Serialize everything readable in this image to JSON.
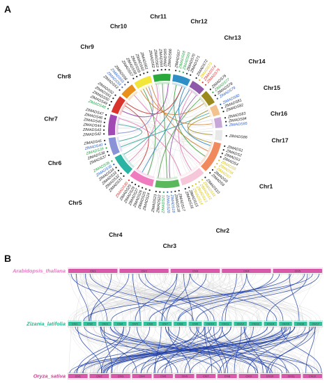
{
  "panel_a": {
    "label": "A",
    "chromosomes": [
      {
        "name": "Chr1",
        "color": "#f08a5d",
        "length": 9
      },
      {
        "name": "Chr2",
        "color": "#f6c7d8",
        "length": 7
      },
      {
        "name": "Chr3",
        "color": "#5cb85c",
        "length": 7
      },
      {
        "name": "Chr4",
        "color": "#f07cc0",
        "length": 7
      },
      {
        "name": "Chr5",
        "color": "#2bb3a3",
        "length": 6
      },
      {
        "name": "Chr6",
        "color": "#8b93d8",
        "length": 5
      },
      {
        "name": "Chr7",
        "color": "#a24ab3",
        "length": 6
      },
      {
        "name": "Chr8",
        "color": "#d9342b",
        "length": 5
      },
      {
        "name": "Chr9",
        "color": "#e8901a",
        "length": 4
      },
      {
        "name": "Chr10",
        "color": "#f3e63a",
        "length": 5
      },
      {
        "name": "Chr11",
        "color": "#2ca93c",
        "length": 5
      },
      {
        "name": "Chr12",
        "color": "#2f8fc4",
        "length": 5
      },
      {
        "name": "Chr13",
        "color": "#8e59a8",
        "length": 4
      },
      {
        "name": "Chr14",
        "color": "#9a8a1e",
        "length": 4
      },
      {
        "name": "Chr15",
        "color": "#f2c38f",
        "length": 3
      },
      {
        "name": "Chr16",
        "color": "#c7a6d8",
        "length": 3
      },
      {
        "name": "Chr17",
        "color": "#e8e8e8",
        "length": 3
      }
    ],
    "genes": [
      {
        "name": "ZlMADS1",
        "color": "#222222"
      },
      {
        "name": "ZlMADS2",
        "color": "#222222"
      },
      {
        "name": "ZlMADS3",
        "color": "#222222"
      },
      {
        "name": "ZlMADS4",
        "color": "#222222"
      },
      {
        "name": "ZlMADS5",
        "color": "#d6c21a"
      },
      {
        "name": "ZlMADS6",
        "color": "#d6c21a"
      },
      {
        "name": "ZlMADS7",
        "color": "#d6c21a"
      },
      {
        "name": "ZlMADS8",
        "color": "#222222"
      },
      {
        "name": "ZlMADS9",
        "color": "#222222"
      },
      {
        "name": "ZlMADS10",
        "color": "#222222"
      },
      {
        "name": "ZlMADS11",
        "color": "#d6c21a"
      },
      {
        "name": "ZlMADS12",
        "color": "#d6c21a"
      },
      {
        "name": "ZlMADS13",
        "color": "#d6c21a"
      },
      {
        "name": "ZlMADS14",
        "color": "#d6c21a"
      },
      {
        "name": "ZlMADS15",
        "color": "#222222"
      },
      {
        "name": "ZlMADS16",
        "color": "#222222"
      },
      {
        "name": "ZlMADS17",
        "color": "#222222"
      },
      {
        "name": "ZlMADS18",
        "color": "#222222"
      },
      {
        "name": "ZlMADS19",
        "color": "#2b5fc8"
      },
      {
        "name": "ZlMADS20",
        "color": "#2b5fc8"
      },
      {
        "name": "ZlMADS21",
        "color": "#2aa34a"
      },
      {
        "name": "ZlMADS22",
        "color": "#222222"
      },
      {
        "name": "ZlMADS23",
        "color": "#222222"
      },
      {
        "name": "ZlMADS24",
        "color": "#222222"
      },
      {
        "name": "ZlMADS25",
        "color": "#222222"
      },
      {
        "name": "ZlMADS26",
        "color": "#222222"
      },
      {
        "name": "ZlMADS27",
        "color": "#222222"
      },
      {
        "name": "ZlMADS28",
        "color": "#222222"
      },
      {
        "name": "ZlMADS29",
        "color": "#222222"
      },
      {
        "name": "ZlMADS30",
        "color": "#e0332e"
      },
      {
        "name": "ZlMADS31",
        "color": "#222222"
      },
      {
        "name": "ZlMADS32",
        "color": "#222222"
      },
      {
        "name": "ZlMADS33",
        "color": "#222222"
      },
      {
        "name": "ZlMADS34",
        "color": "#222222"
      },
      {
        "name": "ZlMADS35",
        "color": "#2b5fc8"
      },
      {
        "name": "ZlMADS36",
        "color": "#2aa34a"
      },
      {
        "name": "ZlMADS37",
        "color": "#222222"
      },
      {
        "name": "ZlMADS38",
        "color": "#222222"
      },
      {
        "name": "ZlMADS39",
        "color": "#2aa34a"
      },
      {
        "name": "ZlMADS40",
        "color": "#2b5fc8"
      },
      {
        "name": "ZlMADS41",
        "color": "#222222"
      },
      {
        "name": "ZlMADS42",
        "color": "#222222"
      },
      {
        "name": "ZlMADS43",
        "color": "#222222"
      },
      {
        "name": "ZlMADS44",
        "color": "#222222"
      },
      {
        "name": "ZlMADS45",
        "color": "#222222"
      },
      {
        "name": "ZlMADS46",
        "color": "#222222"
      },
      {
        "name": "ZlMADS47",
        "color": "#222222"
      },
      {
        "name": "ZlMADS48",
        "color": "#2aa34a"
      },
      {
        "name": "ZlMADS49",
        "color": "#222222"
      },
      {
        "name": "ZlMADS50",
        "color": "#222222"
      },
      {
        "name": "ZlMADS51",
        "color": "#222222"
      },
      {
        "name": "ZlMADS52",
        "color": "#222222"
      },
      {
        "name": "ZlMADS53",
        "color": "#222222"
      },
      {
        "name": "ZlMADS54",
        "color": "#2b5fc8"
      },
      {
        "name": "ZlMADS55",
        "color": "#2b5fc8"
      },
      {
        "name": "ZlMADS56",
        "color": "#222222"
      },
      {
        "name": "ZlMADS57",
        "color": "#222222"
      },
      {
        "name": "ZlMADS58",
        "color": "#222222"
      },
      {
        "name": "ZlMADS59",
        "color": "#222222"
      },
      {
        "name": "ZlMADS60",
        "color": "#222222"
      },
      {
        "name": "ZlMADS61",
        "color": "#222222"
      },
      {
        "name": "ZlMADS62",
        "color": "#222222"
      },
      {
        "name": "ZlMADS63",
        "color": "#222222"
      },
      {
        "name": "ZlMADS64",
        "color": "#222222"
      },
      {
        "name": "ZlMADS65",
        "color": "#222222"
      },
      {
        "name": "ZlMADS66",
        "color": "#222222"
      },
      {
        "name": "ZlMADS67",
        "color": "#222222"
      },
      {
        "name": "ZlMADS68",
        "color": "#2aa34a"
      },
      {
        "name": "ZlMADS69",
        "color": "#2aa34a"
      },
      {
        "name": "ZlMADS70",
        "color": "#222222"
      },
      {
        "name": "ZlMADS71",
        "color": "#222222"
      },
      {
        "name": "ZlMADS72",
        "color": "#222222"
      },
      {
        "name": "ZlMADS73",
        "color": "#d6c21a"
      },
      {
        "name": "ZlMADS74",
        "color": "#e0332e"
      },
      {
        "name": "ZlMADS75",
        "color": "#e0332e"
      },
      {
        "name": "ZlMADS76",
        "color": "#222222"
      },
      {
        "name": "ZlMADS77",
        "color": "#2aa34a"
      },
      {
        "name": "ZlMADS78",
        "color": "#222222"
      },
      {
        "name": "ZlMADS79",
        "color": "#2b5fc8"
      },
      {
        "name": "ZlMADS80",
        "color": "#2b5fc8"
      },
      {
        "name": "ZlMADS81",
        "color": "#222222"
      },
      {
        "name": "ZlMADS82",
        "color": "#222222"
      },
      {
        "name": "ZlMADS83",
        "color": "#222222"
      },
      {
        "name": "ZlMADS84",
        "color": "#222222"
      },
      {
        "name": "ZlMADS85",
        "color": "#2b5fc8"
      },
      {
        "name": "ZlMADS86",
        "color": "#222222"
      }
    ],
    "links": [
      {
        "from": "ZlMADS4",
        "to": "ZlMADS61",
        "color": "#d07a2a"
      },
      {
        "from": "ZlMADS9",
        "to": "ZlMADS55",
        "color": "#e37ab0"
      },
      {
        "from": "ZlMADS12",
        "to": "ZlMADS73",
        "color": "#e37ab0"
      },
      {
        "from": "ZlMADS16",
        "to": "ZlMADS47",
        "color": "#e37ab0"
      },
      {
        "from": "ZlMADS20",
        "to": "ZlMADS64",
        "color": "#4a9a48"
      },
      {
        "from": "ZlMADS23",
        "to": "ZlMADS76",
        "color": "#4a9a48"
      },
      {
        "from": "ZlMADS26",
        "to": "ZlMADS58",
        "color": "#4a9a48"
      },
      {
        "from": "ZlMADS30",
        "to": "ZlMADS51",
        "color": "#c4302a"
      },
      {
        "from": "ZlMADS33",
        "to": "ZlMADS62",
        "color": "#e37ab0"
      },
      {
        "from": "ZlMADS36",
        "to": "ZlMADS70",
        "color": "#2ba59a"
      },
      {
        "from": "ZlMADS38",
        "to": "ZlMADS81",
        "color": "#2ba59a"
      },
      {
        "from": "ZlMADS40",
        "to": "ZlMADS45",
        "color": "#2ba59a"
      },
      {
        "from": "ZlMADS42",
        "to": "ZlMADS60",
        "color": "#8089d0"
      },
      {
        "from": "ZlMADS49",
        "to": "ZlMADS66",
        "color": "#8d3aa0"
      },
      {
        "from": "ZlMADS52",
        "to": "ZlMADS70",
        "color": "#c4302a"
      },
      {
        "from": "ZlMADS57",
        "to": "ZlMADS78",
        "color": "#d07a2a"
      },
      {
        "from": "ZlMADS59",
        "to": "ZlMADS84",
        "color": "#d07a2a"
      },
      {
        "from": "ZlMADS68",
        "to": "ZlMADS6",
        "color": "#3aa03a"
      },
      {
        "from": "ZlMADS71",
        "to": "ZlMADS2",
        "color": "#2a85c0"
      },
      {
        "from": "ZlMADS72",
        "to": "ZlMADS28",
        "color": "#2a85c0"
      },
      {
        "from": "ZlMADS75",
        "to": "ZlMADS19",
        "color": "#8e59a8"
      },
      {
        "from": "ZlMADS80",
        "to": "ZlMADS86",
        "color": "#9a8a1e"
      },
      {
        "from": "ZlMADS82",
        "to": "ZlMADS1",
        "color": "#9a8a1e"
      }
    ]
  },
  "panel_b": {
    "label": "B",
    "tracks": [
      {
        "species": "Arabidopsis_thaliana",
        "color": "#e07cc0",
        "bar_color": "#d65aa8",
        "chromosomes": [
          "Chr1",
          "Chr2",
          "Chr3",
          "Chr4",
          "Chr5"
        ]
      },
      {
        "species": "Zizania_latifolia",
        "color": "#2bb38f",
        "bar_color": "#32c29b",
        "chromosomes": [
          "Chr1",
          "Chr2",
          "Chr3",
          "Chr4",
          "Chr5",
          "Chr6",
          "Chr7",
          "Chr8",
          "Chr9",
          "Chr10",
          "Chr11",
          "Chr12",
          "Chr13",
          "Chr14",
          "Chr15",
          "Chr16",
          "Chr17"
        ]
      },
      {
        "species": "Oryza_sativa",
        "color": "#c2488f",
        "bar_color": "#d65aa8",
        "chromosomes": [
          "Chr1",
          "Chr2",
          "Chr3",
          "Chr4",
          "Chr5",
          "Chr6",
          "Chr7",
          "Chr8",
          "Chr9",
          "Chr10",
          "Chr11",
          "Chr12"
        ]
      }
    ],
    "background_link_color": "#c8c8c8",
    "syntenic_link_color": "#1f3ea8"
  }
}
